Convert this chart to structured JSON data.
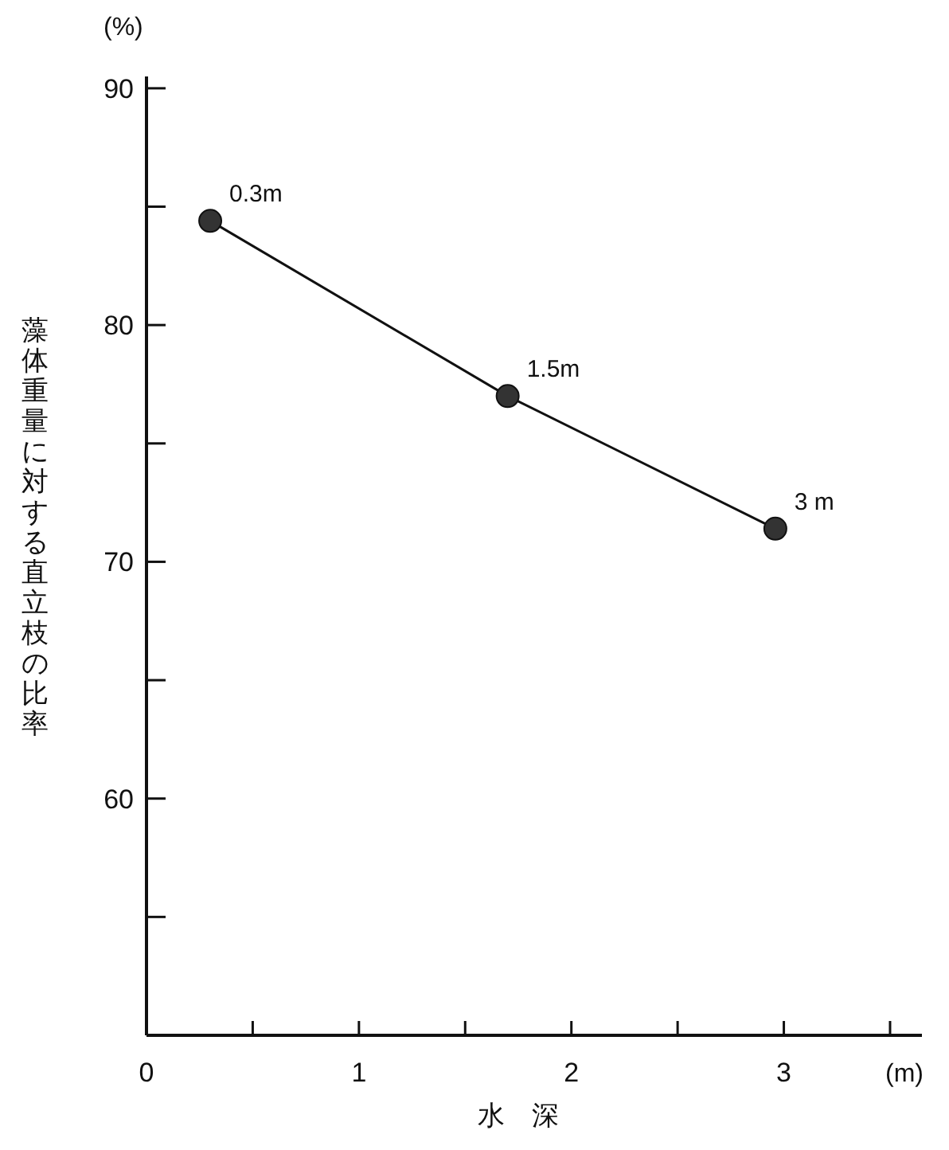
{
  "chart_data": {
    "type": "line",
    "xlabel": "水　深",
    "ylabel": "藻体重量に対する直立枝の比率",
    "annotations": [
      "(%)",
      "(m)",
      {
        "text": "0.3m",
        "x": 0.3,
        "y": 84.4
      },
      {
        "text": "1.5m",
        "x": 1.7,
        "y": 77.0
      },
      {
        "text": "3 m",
        "x": 2.96,
        "y": 71.4
      }
    ],
    "x": [
      0.3,
      1.7,
      2.96
    ],
    "series": [
      {
        "color": "#333333",
        "values": [
          84.4,
          77.0,
          71.4
        ]
      }
    ],
    "xlim": [
      0,
      3.65
    ],
    "ylim": [
      50,
      90.5
    ],
    "xticks": [
      0,
      {
        "value": 0.5,
        "label": null
      },
      1,
      {
        "value": 1.5,
        "label": null
      },
      2,
      {
        "value": 2.5,
        "label": null
      },
      3,
      {
        "value": 3.5,
        "label": null
      }
    ],
    "yticks": [
      {
        "value": 55,
        "label": null
      },
      60,
      {
        "value": 65,
        "label": null
      },
      70,
      {
        "value": 75,
        "label": null
      },
      80,
      {
        "value": 85,
        "label": null
      },
      90
    ],
    "marker": "circle",
    "line_style": "solid",
    "grid": false
  }
}
